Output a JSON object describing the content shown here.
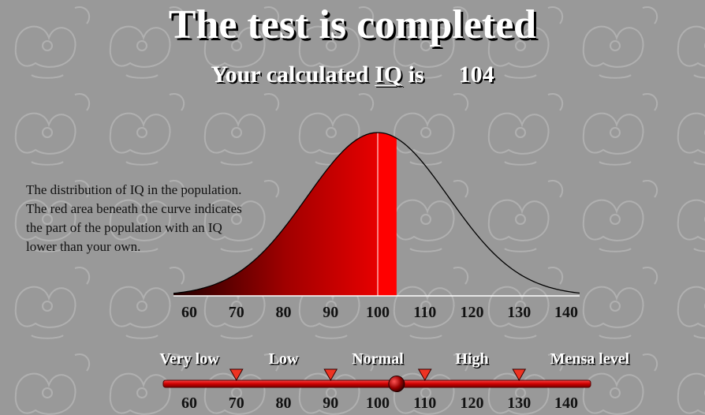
{
  "title": "The test is completed",
  "subtitle": {
    "prefix": "Your calculated",
    "link": "IQ",
    "suffix": "is",
    "score": "104"
  },
  "description": [
    "The distribution of IQ in the population.",
    "The red area beneath the curve indicates",
    "the part of the population with an IQ",
    "lower than your own."
  ],
  "chart_data": {
    "type": "area",
    "distribution": "normal",
    "mean": 100,
    "sd": 15,
    "user_iq": 104,
    "xlim": [
      57,
      143
    ],
    "x_ticks": [
      60,
      70,
      80,
      90,
      100,
      110,
      120,
      130,
      140
    ],
    "mean_line": 100,
    "fill_colors": {
      "dark": "#200000",
      "mid": "#cc0000",
      "bright": "#ff0000",
      "curve": "#000000"
    }
  },
  "scale": {
    "ranges": [
      {
        "label": "Very low",
        "center": 60
      },
      {
        "label": "Low",
        "center": 80
      },
      {
        "label": "Normal",
        "center": 100
      },
      {
        "label": "High",
        "center": 120
      },
      {
        "label": "Mensa level",
        "center": 145
      }
    ],
    "boundaries": [
      70,
      90,
      110,
      130
    ],
    "marker": 104,
    "ticks": [
      60,
      70,
      80,
      90,
      100,
      110,
      120,
      130,
      140
    ],
    "colors": {
      "bar": "#cc0000",
      "triangle": "#ee3322",
      "marker": "#660000"
    }
  }
}
